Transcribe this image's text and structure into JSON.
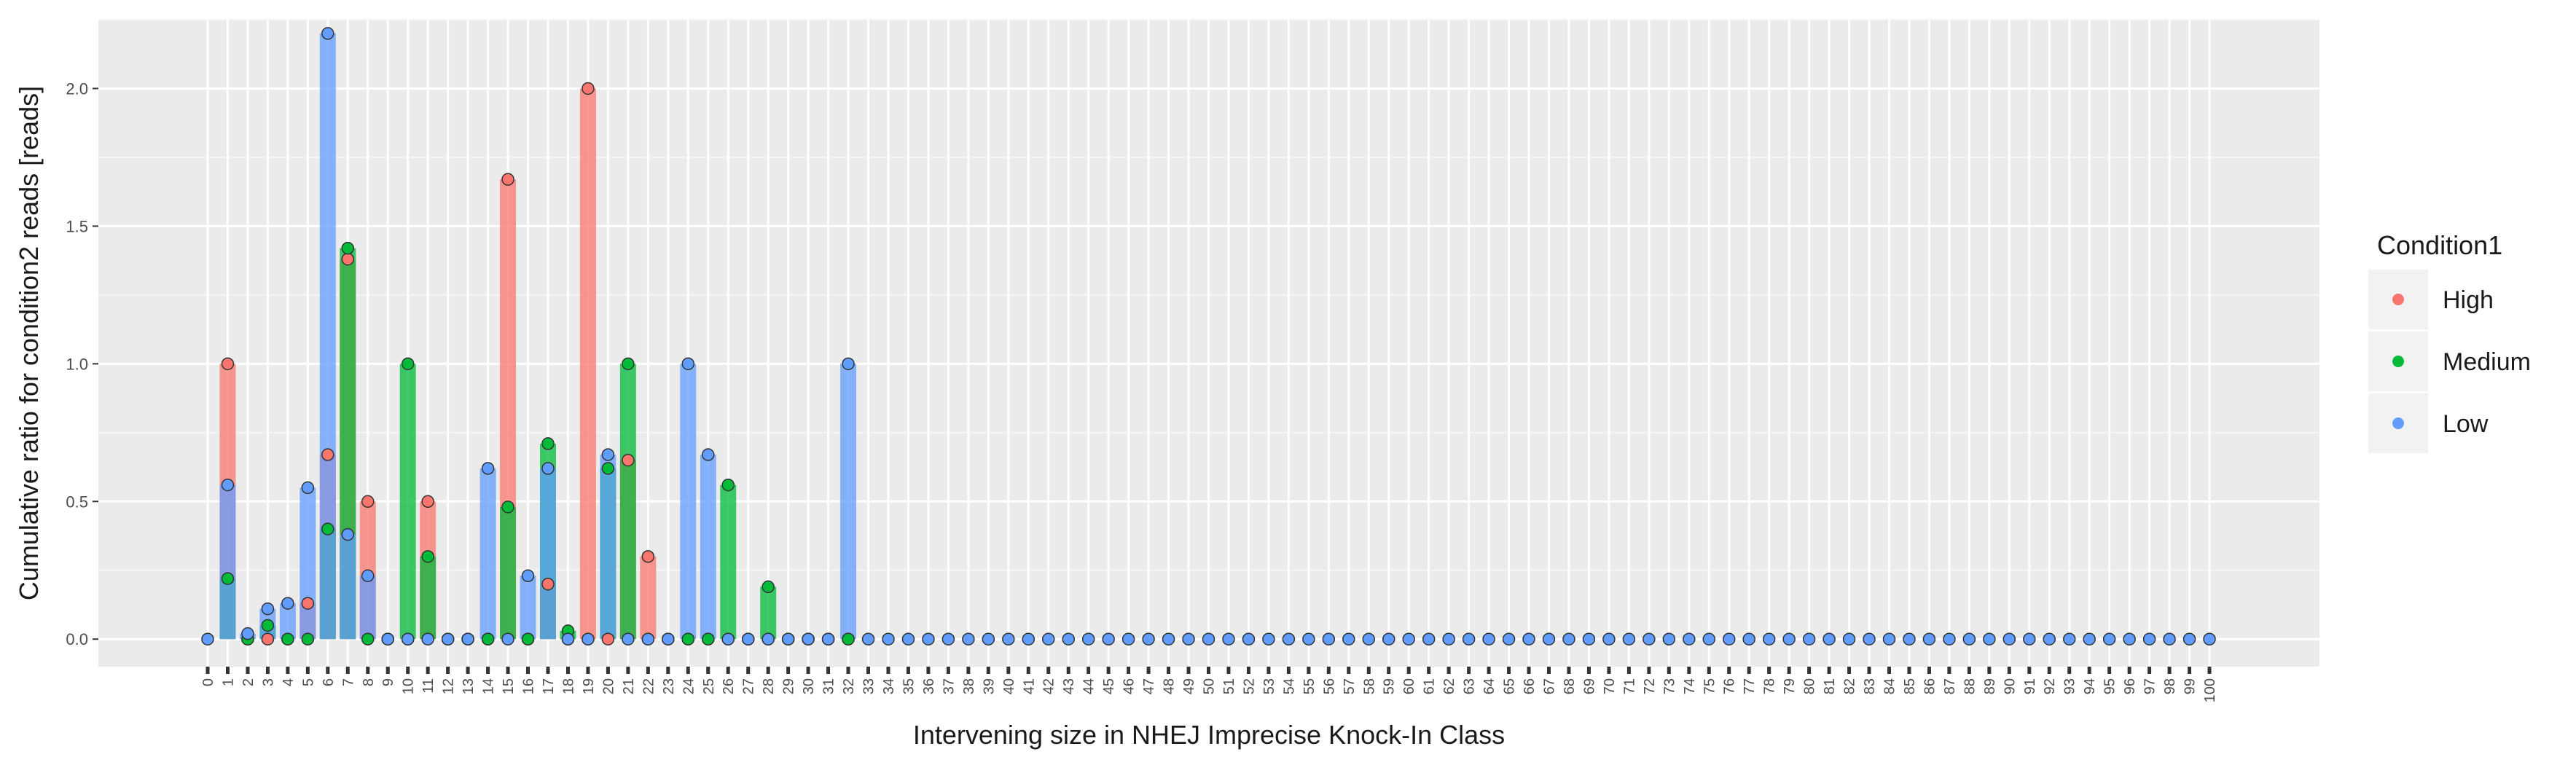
{
  "chart_data": {
    "type": "bar",
    "xlabel": "Intervening size in NHEJ Imprecise Knock-In Class",
    "ylabel": "Cumulative ratio for condition2 reads [reads]",
    "ylim": [
      -0.1,
      2.25
    ],
    "y_ticks": [
      "0.0",
      "0.5",
      "1.0",
      "1.5",
      "2.0"
    ],
    "x_categories": [
      "0",
      "1",
      "2",
      "3",
      "4",
      "5",
      "6",
      "7",
      "8",
      "9",
      "10",
      "11",
      "12",
      "13",
      "14",
      "15",
      "16",
      "17",
      "18",
      "19",
      "20",
      "21",
      "22",
      "23",
      "24",
      "25",
      "26",
      "27",
      "28",
      "29",
      "30",
      "31",
      "32",
      "33",
      "34",
      "35",
      "36",
      "37",
      "38",
      "39",
      "40",
      "41",
      "42",
      "43",
      "44",
      "45",
      "46",
      "47",
      "48",
      "49",
      "50",
      "51",
      "52",
      "53",
      "54",
      "55",
      "56",
      "57",
      "58",
      "59",
      "60",
      "61",
      "62",
      "63",
      "64",
      "65",
      "66",
      "67",
      "68",
      "69",
      "70",
      "71",
      "72",
      "73",
      "74",
      "75",
      "76",
      "77",
      "78",
      "79",
      "80",
      "81",
      "82",
      "83",
      "84",
      "85",
      "86",
      "87",
      "88",
      "89",
      "90",
      "91",
      "92",
      "93",
      "94",
      "95",
      "96",
      "97",
      "98",
      "99",
      "100"
    ],
    "grid": true,
    "legend_position": "right",
    "legend_title": "Condition1",
    "series": [
      {
        "name": "High",
        "color": "#F8766D",
        "points": {
          "1": 1.0,
          "2": 0.0,
          "3": 0.0,
          "4": 0.0,
          "5": 0.13,
          "6": 0.67,
          "7": 1.38,
          "8": 0.5,
          "9": 0.0,
          "10": 0.0,
          "11": 0.5,
          "12": 0.0,
          "13": 0.0,
          "14": 0.0,
          "15": 1.67,
          "16": 0.0,
          "17": 0.2,
          "18": 0.0,
          "19": 2.0,
          "20": 0.0,
          "21": 0.65,
          "22": 0.3,
          "23": 0.0,
          "24": 0.0,
          "25": 0.0,
          "26": 0.0,
          "27": 0.0,
          "28": 0.0,
          "29": 0.0,
          "30": 0.0,
          "31": 0.0,
          "32": 0.0
        }
      },
      {
        "name": "Medium",
        "color": "#00BA38",
        "points": {
          "1": 0.22,
          "2": 0.0,
          "3": 0.05,
          "4": 0.0,
          "5": 0.0,
          "6": 0.4,
          "7": 1.42,
          "8": 0.0,
          "9": 0.0,
          "10": 1.0,
          "11": 0.3,
          "12": 0.0,
          "13": 0.0,
          "14": 0.0,
          "15": 0.48,
          "16": 0.0,
          "17": 0.71,
          "18": 0.03,
          "19": 0.0,
          "20": 0.62,
          "21": 1.0,
          "22": 0.0,
          "23": 0.0,
          "24": 0.0,
          "25": 0.0,
          "26": 0.56,
          "27": 0.0,
          "28": 0.19,
          "29": 0.0,
          "30": 0.0,
          "31": 0.0,
          "32": 0.0
        }
      },
      {
        "name": "Low",
        "color": "#619CFF",
        "points": {
          "0": 0.0,
          "1": 0.56,
          "2": 0.02,
          "3": 0.11,
          "4": 0.13,
          "5": 0.55,
          "6": 2.2,
          "7": 0.38,
          "8": 0.23,
          "9": 0.0,
          "10": 0.0,
          "11": 0.0,
          "12": 0.0,
          "13": 0.0,
          "14": 0.62,
          "15": 0.0,
          "16": 0.23,
          "17": 0.62,
          "18": 0.0,
          "19": 0.0,
          "20": 0.67,
          "21": 0.0,
          "22": 0.0,
          "23": 0.0,
          "24": 1.0,
          "25": 0.67,
          "26": 0.0,
          "27": 0.0,
          "28": 0.0,
          "29": 0.0,
          "30": 0.0,
          "31": 0.0,
          "32": 1.0
        }
      }
    ]
  }
}
